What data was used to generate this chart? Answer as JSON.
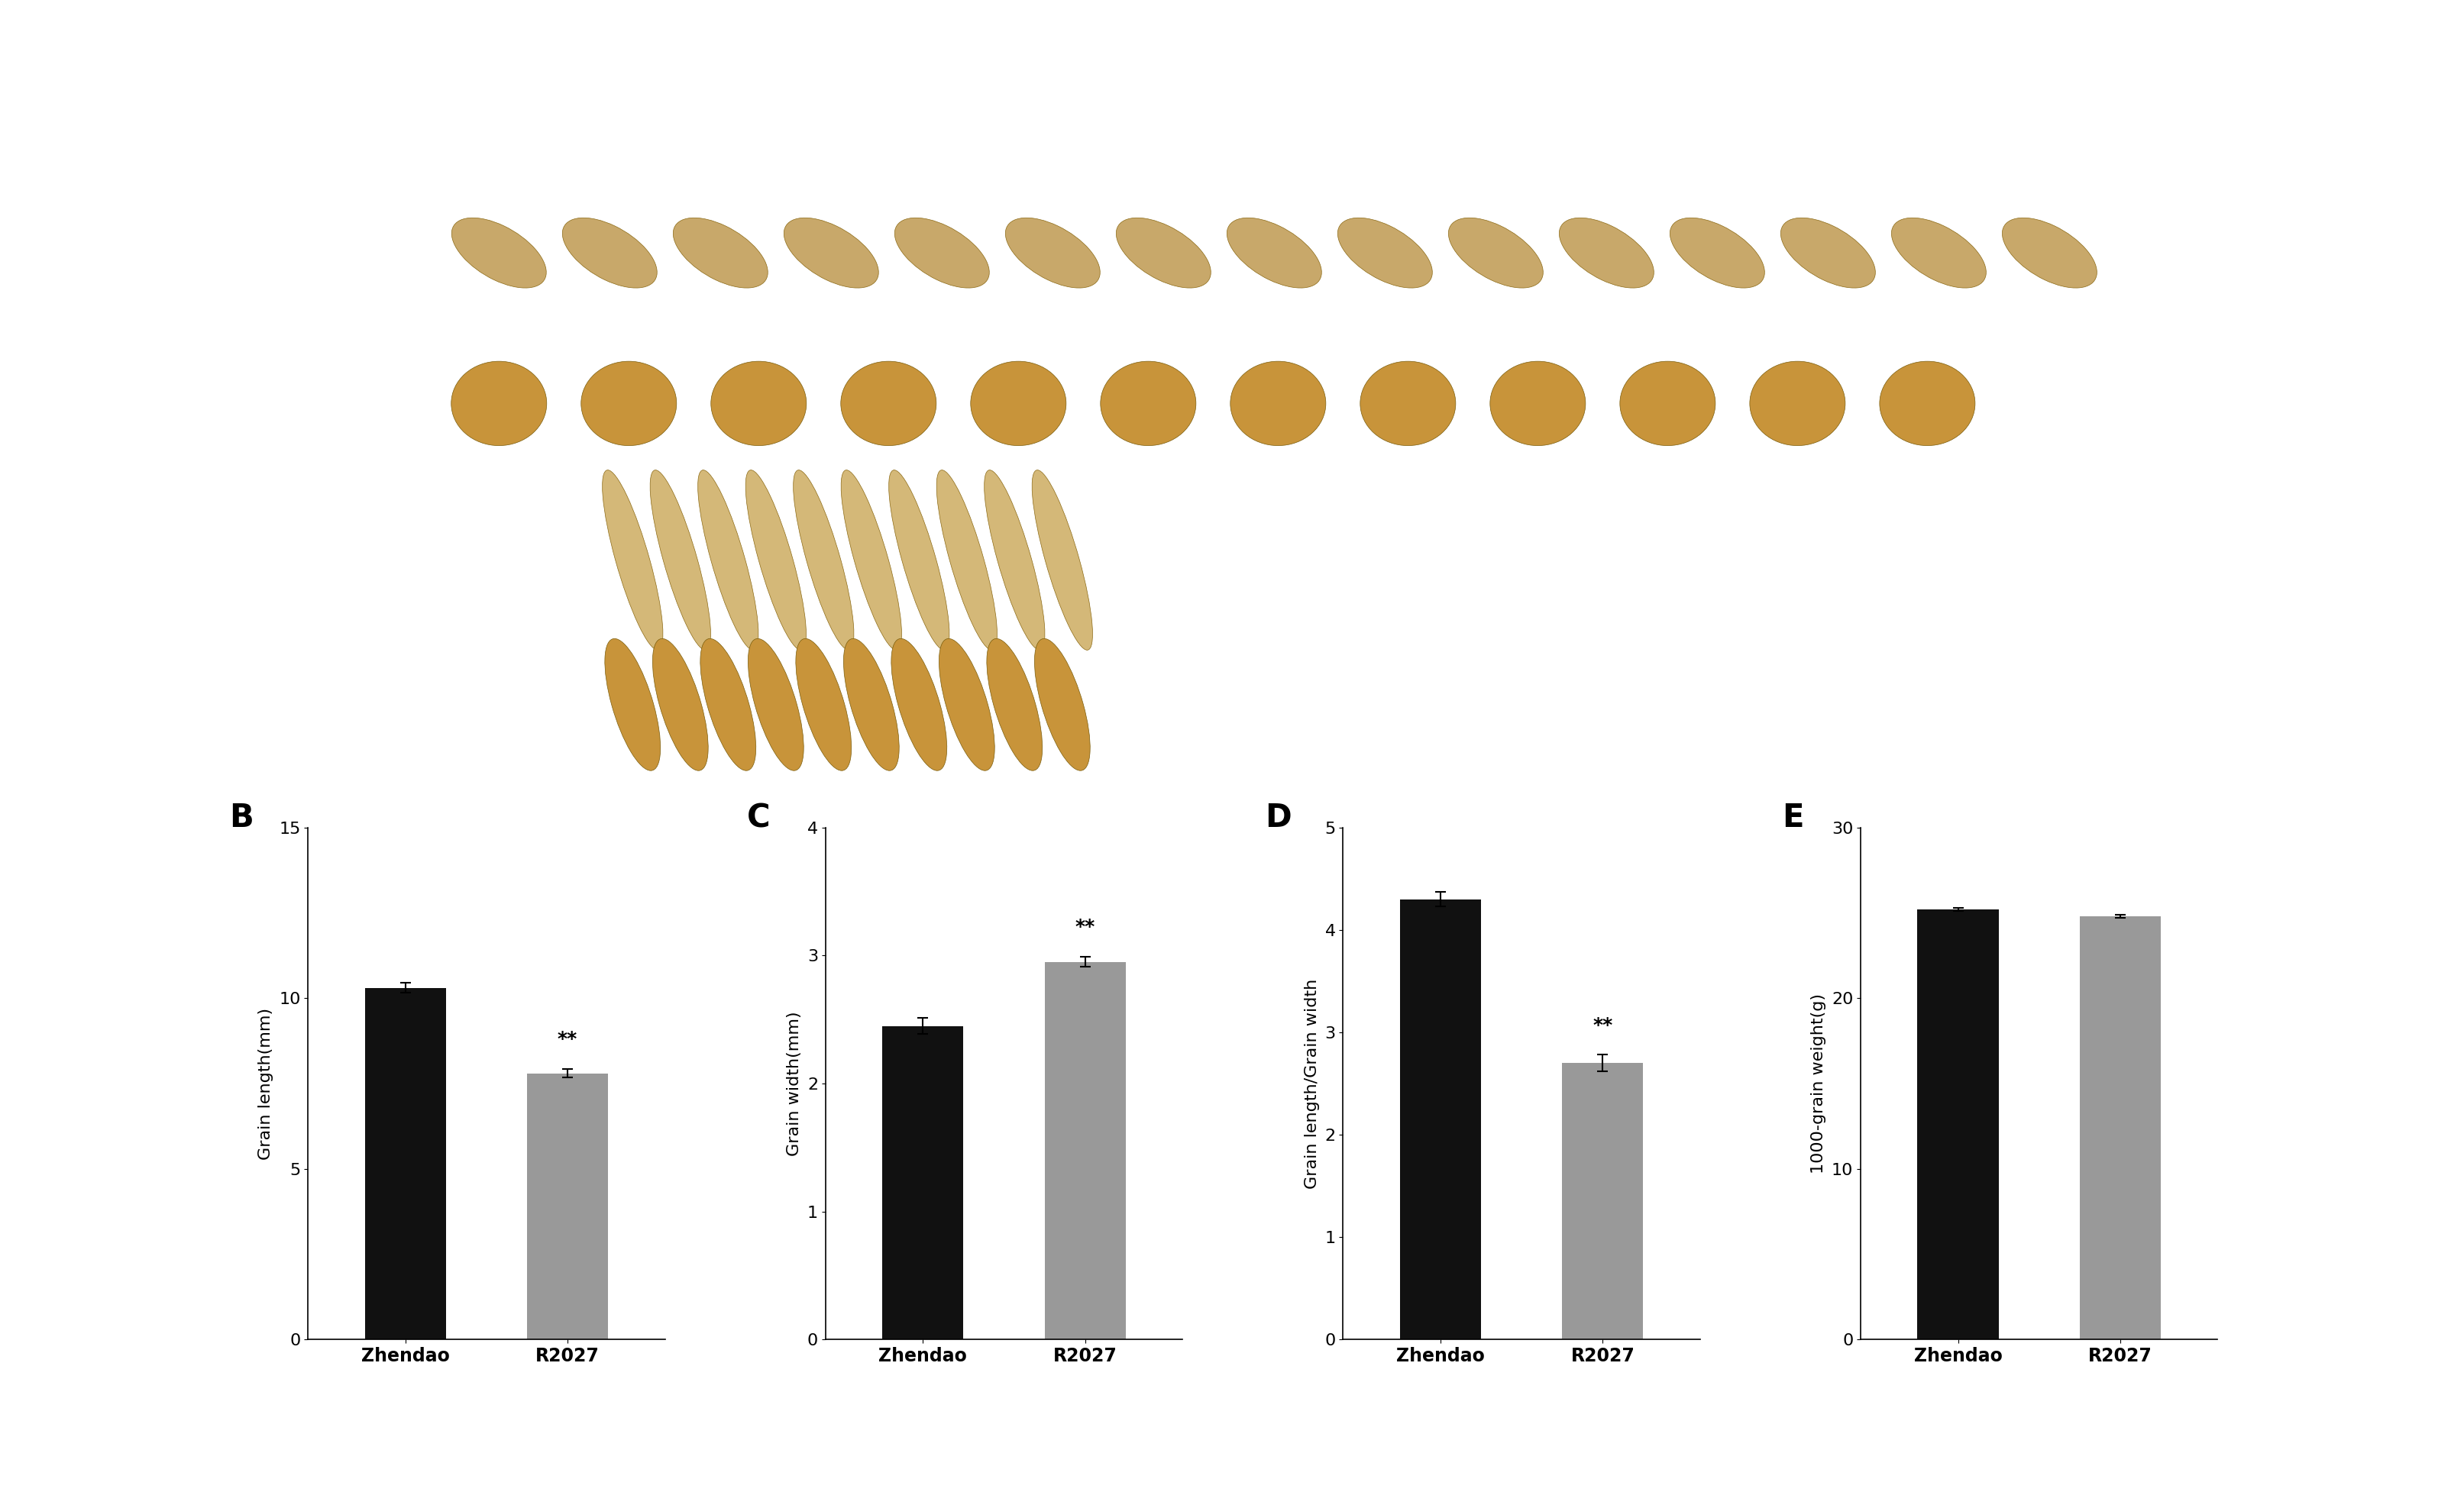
{
  "panel_label_fontsize": 28,
  "bar_width": 0.5,
  "categories": [
    "Zhendao",
    "R2027"
  ],
  "bar_colors": [
    "#111111",
    "#999999"
  ],
  "B_values": [
    10.3,
    7.8
  ],
  "B_errors": [
    0.15,
    0.12
  ],
  "B_ylabel": "Grain length(mm)",
  "B_ylim": [
    0,
    15
  ],
  "B_yticks": [
    0,
    5,
    10,
    15
  ],
  "B_sig": "**",
  "B_sig_bar_idx": 1,
  "C_values": [
    2.45,
    2.95
  ],
  "C_errors": [
    0.06,
    0.04
  ],
  "C_ylabel": "Grain width(mm)",
  "C_ylim": [
    0,
    4
  ],
  "C_yticks": [
    0,
    1,
    2,
    3,
    4
  ],
  "C_sig": "**",
  "C_sig_bar_idx": 1,
  "D_values": [
    4.3,
    2.7
  ],
  "D_errors": [
    0.07,
    0.08
  ],
  "D_ylabel": "Grain length/Grain width",
  "D_ylim": [
    0,
    5
  ],
  "D_yticks": [
    0,
    1,
    2,
    3,
    4,
    5
  ],
  "D_sig": "**",
  "D_sig_bar_idx": 1,
  "E_values": [
    25.2,
    24.8
  ],
  "E_errors": [
    0.1,
    0.1
  ],
  "E_ylabel": "1000-grain weight(g)",
  "E_ylim": [
    0,
    30
  ],
  "E_yticks": [
    0,
    10,
    20,
    30
  ],
  "E_sig": null,
  "E_sig_bar_idx": null,
  "tick_label_fontsize": 16,
  "ylabel_fontsize": 16,
  "xlabel_fontsize": 17,
  "sig_fontsize": 18,
  "panel_bg": "#ffffff",
  "photo_bg": "#000000"
}
